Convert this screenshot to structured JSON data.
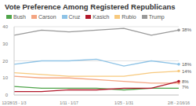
{
  "chart_data": {
    "type": "line",
    "title": "Vote Preference Among Registered Republicans",
    "categories": [
      "12/28/15 - 1/3",
      null,
      "1/11 - 1/17",
      null,
      "1/25 - 1/31",
      null,
      "2/8 - 2/16/16"
    ],
    "ylim": [
      0,
      40
    ],
    "yticks": [
      0,
      10,
      20,
      30,
      40
    ],
    "grid": true,
    "legend": "top",
    "series": [
      {
        "name": "Bush",
        "color": "#4fa44a",
        "values": [
          5,
          4,
          4,
          4,
          3,
          4,
          4
        ],
        "value_labels": [
          null,
          null,
          null,
          null,
          null,
          null,
          null
        ]
      },
      {
        "name": "Carson",
        "color": "#f4a582",
        "values": [
          11,
          10,
          10,
          9,
          8,
          7,
          7
        ],
        "value_labels": [
          null,
          null,
          null,
          null,
          null,
          null,
          "7%"
        ]
      },
      {
        "name": "Cruz",
        "color": "#8ec3e6",
        "values": [
          18,
          20,
          20,
          21,
          17,
          20,
          18
        ],
        "value_labels": [
          null,
          null,
          null,
          null,
          null,
          null,
          "18%"
        ]
      },
      {
        "name": "Kasich",
        "color": "#b2182b",
        "values": [
          2,
          2,
          3,
          3,
          4,
          4,
          8
        ],
        "value_labels": [
          null,
          null,
          null,
          null,
          null,
          null,
          "8%"
        ]
      },
      {
        "name": "Rubio",
        "color": "#f7c97e",
        "values": [
          13,
          12,
          11,
          11,
          11,
          13,
          14
        ],
        "value_labels": [
          null,
          null,
          null,
          null,
          null,
          null,
          "14%"
        ]
      },
      {
        "name": "Trump",
        "color": "#999999",
        "values": [
          35,
          38,
          37,
          38,
          39,
          35,
          38
        ],
        "value_labels": [
          null,
          null,
          null,
          null,
          null,
          null,
          "38%"
        ]
      }
    ]
  }
}
